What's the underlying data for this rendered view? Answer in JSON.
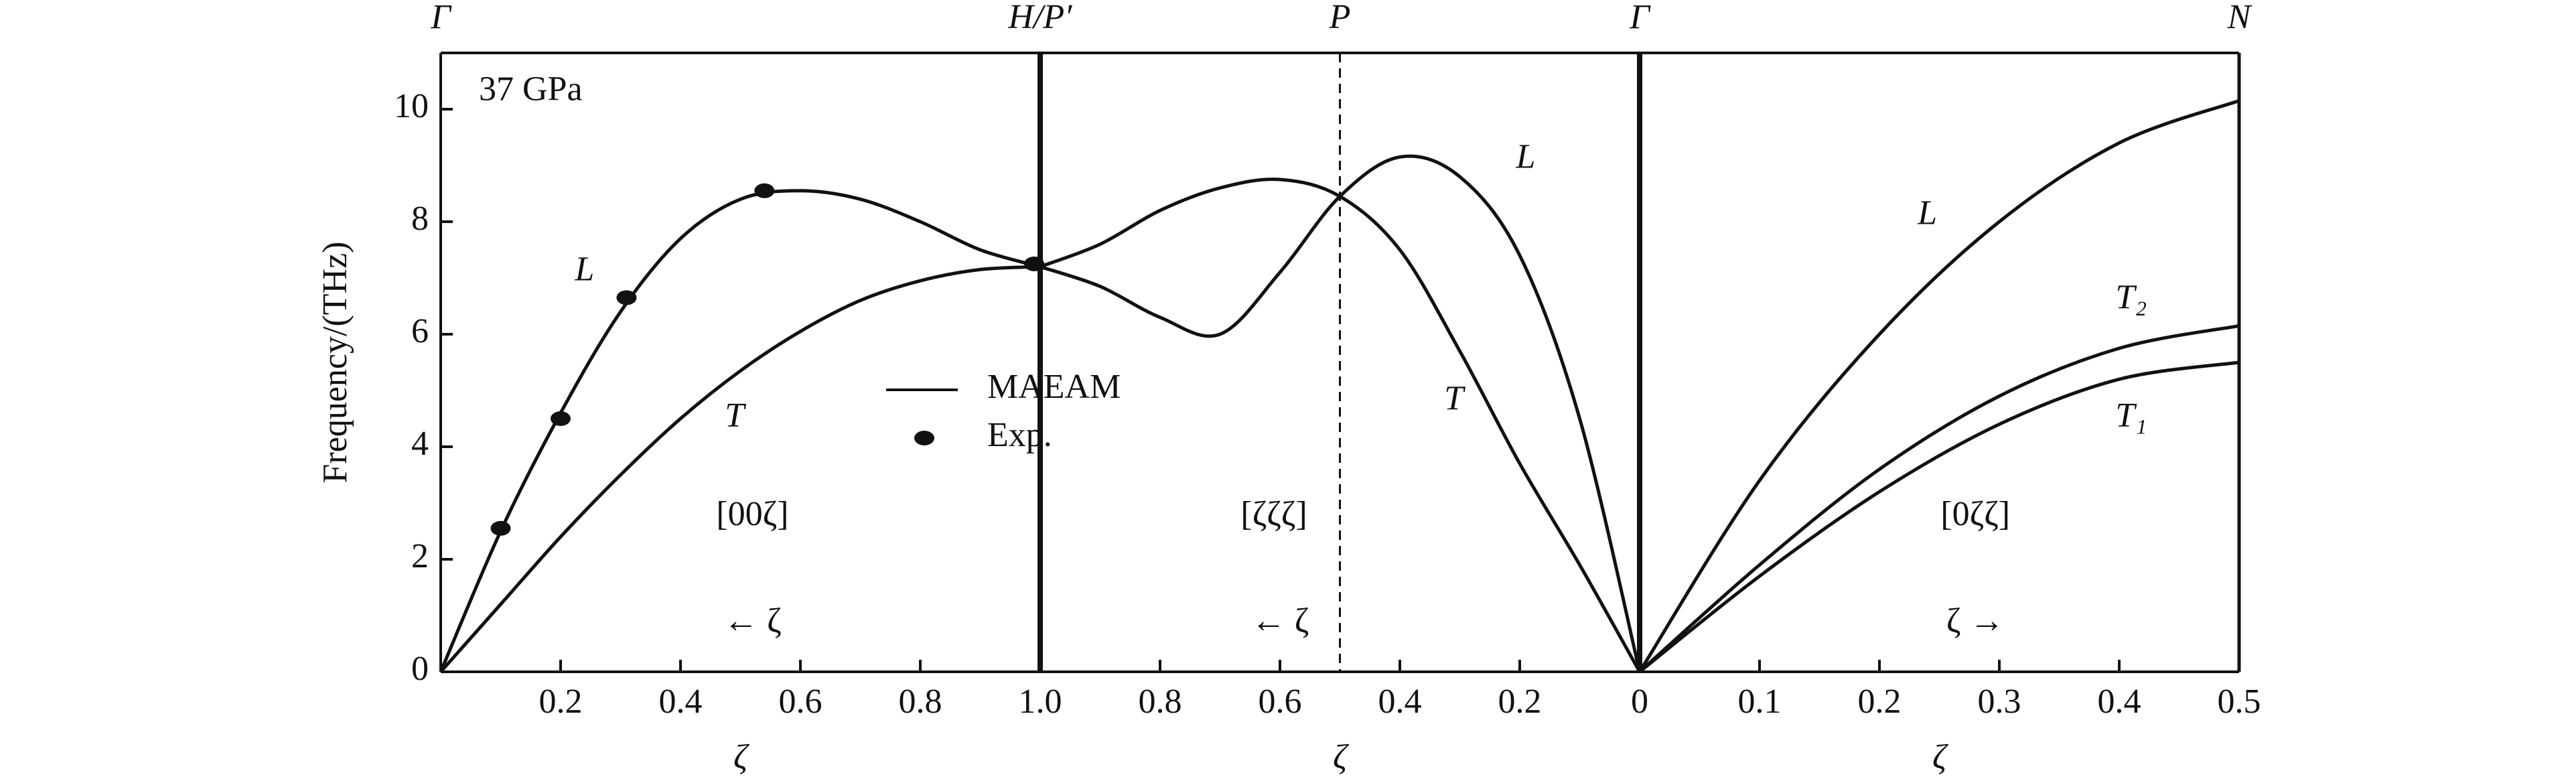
{
  "chart_data": [
    {
      "type": "line",
      "xlabel": "ζ",
      "ylabel": "Frequency/(THz)",
      "xlim": [
        0,
        1
      ],
      "ylim": [
        0,
        11
      ],
      "xticks": [
        0.2,
        0.4,
        0.6,
        0.8,
        {
          "value": 1,
          "label": "1.0"
        }
      ],
      "yticks": [
        0,
        2,
        4,
        6,
        8,
        10
      ],
      "top_labels": [
        {
          "x": 0,
          "text": "Γ"
        },
        {
          "x": 1,
          "text": "H/P′"
        }
      ],
      "x": [
        0,
        0.1,
        0.2,
        0.3,
        0.4,
        0.5,
        0.6,
        0.7,
        0.8,
        0.9,
        1
      ],
      "series": [
        {
          "name": "L",
          "label_x": 0.24,
          "label_y": 7.1,
          "values": [
            0,
            2.5,
            4.6,
            6.4,
            7.7,
            8.4,
            8.55,
            8.4,
            8.0,
            7.5,
            7.2
          ]
        },
        {
          "name": "T",
          "label_x": 0.49,
          "label_y": 4.5,
          "values": [
            0,
            1.2,
            2.4,
            3.5,
            4.5,
            5.35,
            6.05,
            6.6,
            6.95,
            7.15,
            7.2
          ]
        },
        {
          "marker": "dot",
          "x": [
            0.1,
            0.2,
            0.31,
            0.54,
            0.99
          ],
          "values": [
            2.55,
            4.5,
            6.65,
            8.55,
            7.25
          ]
        }
      ],
      "annotations": [
        {
          "text": "37 GPa",
          "x": 0.15,
          "y": 10.3
        },
        {
          "text": "[00ζ]",
          "x": 0.52,
          "y": 2.75
        },
        {
          "text": "← ζ",
          "x": 0.52,
          "y": 0.85
        }
      ],
      "legend": [
        {
          "name": "MAEAM",
          "marker": "line"
        },
        {
          "name": "Exp.",
          "marker": "dot"
        }
      ]
    },
    {
      "type": "line",
      "xlabel": "ζ",
      "xlim": [
        1,
        0
      ],
      "ylim": [
        0,
        11
      ],
      "xticks": [
        0.8,
        0.6,
        0.4,
        0.2,
        0
      ],
      "top_labels": [
        {
          "x": 0.5,
          "text": "P",
          "line": "dashed"
        },
        {
          "x": 0,
          "text": "Γ"
        }
      ],
      "x": [
        1,
        0.9,
        0.8,
        0.7,
        0.6,
        0.5,
        0.4,
        0.3,
        0.2,
        0.1,
        0
      ],
      "series": [
        {
          "name": "T",
          "label_x": 0.31,
          "label_y": 4.8,
          "values": [
            7.2,
            7.6,
            8.2,
            8.6,
            8.75,
            8.45,
            7.5,
            5.7,
            3.7,
            1.9,
            0
          ]
        },
        {
          "name": "L",
          "label_x": 0.19,
          "label_y": 9.1,
          "values": [
            7.2,
            6.85,
            6.3,
            6.0,
            7.1,
            8.45,
            9.15,
            8.8,
            7.4,
            4.5,
            0
          ]
        }
      ],
      "annotations": [
        {
          "text": "[ζζζ]",
          "x": 0.61,
          "y": 2.75
        },
        {
          "text": "← ζ",
          "x": 0.6,
          "y": 0.85
        }
      ]
    },
    {
      "type": "line",
      "xlabel": "ζ",
      "xlim": [
        0,
        0.5
      ],
      "ylim": [
        0,
        11
      ],
      "xticks": [
        0.1,
        0.2,
        0.3,
        0.4,
        0.5
      ],
      "top_labels": [
        {
          "x": 0.5,
          "text": "N"
        }
      ],
      "x": [
        0,
        0.1,
        0.2,
        0.3,
        0.4,
        0.5
      ],
      "series": [
        {
          "name": "L",
          "label_x": 0.24,
          "label_y": 8.1,
          "values": [
            0,
            3.4,
            6.0,
            8.0,
            9.4,
            10.15
          ]
        },
        {
          "name": "T₂",
          "label_x": 0.41,
          "label_y": 6.6,
          "values": [
            0,
            1.9,
            3.6,
            4.9,
            5.75,
            6.15
          ]
        },
        {
          "name": "T₁",
          "label_x": 0.41,
          "label_y": 4.5,
          "values": [
            0,
            1.7,
            3.2,
            4.4,
            5.2,
            5.5
          ]
        }
      ],
      "annotations": [
        {
          "text": "[0ζζ]",
          "x": 0.28,
          "y": 2.75
        },
        {
          "text": "ζ →",
          "x": 0.28,
          "y": 0.85
        }
      ]
    }
  ]
}
